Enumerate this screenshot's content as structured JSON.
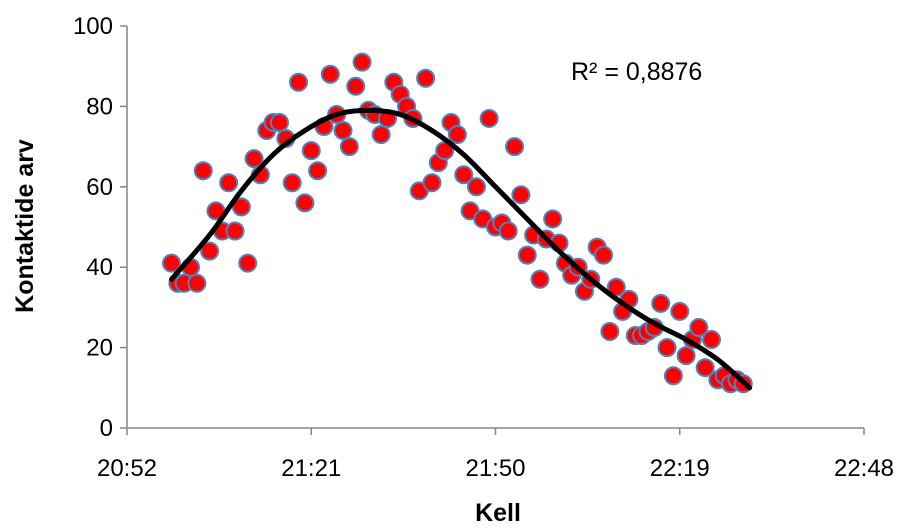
{
  "chart_data": {
    "type": "scatter",
    "xlabel": "Kell",
    "ylabel": "Kontaktide arv",
    "xlim": [
      "20:52",
      "22:48"
    ],
    "ylim": [
      0,
      100
    ],
    "x_ticks": [
      "20:52",
      "21:21",
      "21:50",
      "22:19",
      "22:48"
    ],
    "y_ticks": [
      0,
      20,
      40,
      60,
      80,
      100
    ],
    "grid": false,
    "legend": "none",
    "annotation": "R² = 0,8876",
    "marker_color": "#ff0000",
    "marker_edge_color": "#4f81bd",
    "trendline_color": "#000000",
    "points": [
      {
        "x": "20:59",
        "y": 41
      },
      {
        "x": "21:00",
        "y": 36
      },
      {
        "x": "21:01",
        "y": 36
      },
      {
        "x": "21:02",
        "y": 40
      },
      {
        "x": "21:03",
        "y": 36
      },
      {
        "x": "21:04",
        "y": 64
      },
      {
        "x": "21:05",
        "y": 44
      },
      {
        "x": "21:06",
        "y": 54
      },
      {
        "x": "21:07",
        "y": 49
      },
      {
        "x": "21:08",
        "y": 61
      },
      {
        "x": "21:09",
        "y": 49
      },
      {
        "x": "21:10",
        "y": 55
      },
      {
        "x": "21:11",
        "y": 41
      },
      {
        "x": "21:12",
        "y": 67
      },
      {
        "x": "21:13",
        "y": 63
      },
      {
        "x": "21:14",
        "y": 74
      },
      {
        "x": "21:15",
        "y": 76
      },
      {
        "x": "21:16",
        "y": 76
      },
      {
        "x": "21:17",
        "y": 72
      },
      {
        "x": "21:18",
        "y": 61
      },
      {
        "x": "21:19",
        "y": 86
      },
      {
        "x": "21:20",
        "y": 56
      },
      {
        "x": "21:21",
        "y": 69
      },
      {
        "x": "21:22",
        "y": 64
      },
      {
        "x": "21:23",
        "y": 75
      },
      {
        "x": "21:24",
        "y": 88
      },
      {
        "x": "21:25",
        "y": 78
      },
      {
        "x": "21:26",
        "y": 74
      },
      {
        "x": "21:27",
        "y": 70
      },
      {
        "x": "21:28",
        "y": 85
      },
      {
        "x": "21:29",
        "y": 91
      },
      {
        "x": "21:30",
        "y": 79
      },
      {
        "x": "21:31",
        "y": 78
      },
      {
        "x": "21:32",
        "y": 73
      },
      {
        "x": "21:33",
        "y": 77
      },
      {
        "x": "21:34",
        "y": 86
      },
      {
        "x": "21:35",
        "y": 83
      },
      {
        "x": "21:36",
        "y": 80
      },
      {
        "x": "21:37",
        "y": 77
      },
      {
        "x": "21:38",
        "y": 59
      },
      {
        "x": "21:39",
        "y": 87
      },
      {
        "x": "21:40",
        "y": 61
      },
      {
        "x": "21:41",
        "y": 66
      },
      {
        "x": "21:42",
        "y": 69
      },
      {
        "x": "21:43",
        "y": 76
      },
      {
        "x": "21:44",
        "y": 73
      },
      {
        "x": "21:45",
        "y": 63
      },
      {
        "x": "21:46",
        "y": 54
      },
      {
        "x": "21:47",
        "y": 60
      },
      {
        "x": "21:48",
        "y": 52
      },
      {
        "x": "21:49",
        "y": 77
      },
      {
        "x": "21:50",
        "y": 50
      },
      {
        "x": "21:51",
        "y": 51
      },
      {
        "x": "21:52",
        "y": 49
      },
      {
        "x": "21:53",
        "y": 70
      },
      {
        "x": "21:54",
        "y": 58
      },
      {
        "x": "21:55",
        "y": 43
      },
      {
        "x": "21:56",
        "y": 48
      },
      {
        "x": "21:57",
        "y": 37
      },
      {
        "x": "21:58",
        "y": 47
      },
      {
        "x": "21:59",
        "y": 52
      },
      {
        "x": "22:00",
        "y": 46
      },
      {
        "x": "22:01",
        "y": 41
      },
      {
        "x": "22:02",
        "y": 38
      },
      {
        "x": "22:03",
        "y": 40
      },
      {
        "x": "22:04",
        "y": 34
      },
      {
        "x": "22:05",
        "y": 37
      },
      {
        "x": "22:06",
        "y": 45
      },
      {
        "x": "22:07",
        "y": 43
      },
      {
        "x": "22:08",
        "y": 24
      },
      {
        "x": "22:09",
        "y": 35
      },
      {
        "x": "22:10",
        "y": 29
      },
      {
        "x": "22:11",
        "y": 32
      },
      {
        "x": "22:12",
        "y": 23
      },
      {
        "x": "22:13",
        "y": 23
      },
      {
        "x": "22:14",
        "y": 24
      },
      {
        "x": "22:15",
        "y": 25
      },
      {
        "x": "22:16",
        "y": 31
      },
      {
        "x": "22:17",
        "y": 20
      },
      {
        "x": "22:18",
        "y": 13
      },
      {
        "x": "22:19",
        "y": 29
      },
      {
        "x": "22:20",
        "y": 18
      },
      {
        "x": "22:21",
        "y": 22
      },
      {
        "x": "22:22",
        "y": 25
      },
      {
        "x": "22:23",
        "y": 15
      },
      {
        "x": "22:24",
        "y": 22
      },
      {
        "x": "22:25",
        "y": 12
      },
      {
        "x": "22:26",
        "y": 13
      },
      {
        "x": "22:27",
        "y": 11
      },
      {
        "x": "22:28",
        "y": 12
      },
      {
        "x": "22:29",
        "y": 11
      }
    ],
    "trendline": [
      {
        "x": "20:59",
        "y": 37
      },
      {
        "x": "21:05",
        "y": 48
      },
      {
        "x": "21:10",
        "y": 59
      },
      {
        "x": "21:15",
        "y": 68
      },
      {
        "x": "21:20",
        "y": 74
      },
      {
        "x": "21:25",
        "y": 78
      },
      {
        "x": "21:30",
        "y": 79
      },
      {
        "x": "21:35",
        "y": 78
      },
      {
        "x": "21:40",
        "y": 74
      },
      {
        "x": "21:45",
        "y": 68
      },
      {
        "x": "21:50",
        "y": 60
      },
      {
        "x": "21:55",
        "y": 52
      },
      {
        "x": "22:00",
        "y": 44
      },
      {
        "x": "22:05",
        "y": 37
      },
      {
        "x": "22:10",
        "y": 31
      },
      {
        "x": "22:15",
        "y": 26
      },
      {
        "x": "22:20",
        "y": 22
      },
      {
        "x": "22:25",
        "y": 17
      },
      {
        "x": "22:30",
        "y": 10
      }
    ]
  }
}
